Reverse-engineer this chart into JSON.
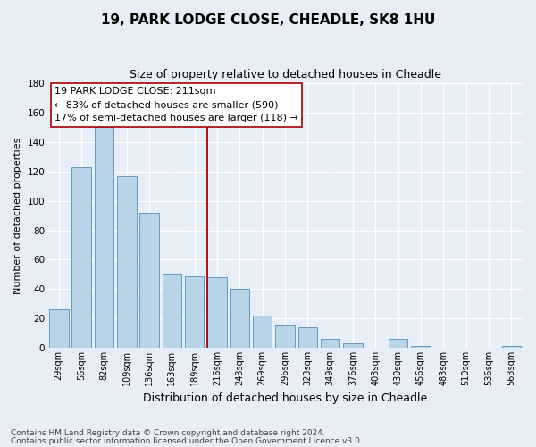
{
  "title": "19, PARK LODGE CLOSE, CHEADLE, SK8 1HU",
  "subtitle": "Size of property relative to detached houses in Cheadle",
  "xlabel": "Distribution of detached houses by size in Cheadle",
  "ylabel": "Number of detached properties",
  "footnote1": "Contains HM Land Registry data © Crown copyright and database right 2024.",
  "footnote2": "Contains public sector information licensed under the Open Government Licence v3.0.",
  "bar_labels": [
    "29sqm",
    "56sqm",
    "82sqm",
    "109sqm",
    "136sqm",
    "163sqm",
    "189sqm",
    "216sqm",
    "243sqm",
    "269sqm",
    "296sqm",
    "323sqm",
    "349sqm",
    "376sqm",
    "403sqm",
    "430sqm",
    "456sqm",
    "483sqm",
    "510sqm",
    "536sqm",
    "563sqm"
  ],
  "bar_values": [
    26,
    123,
    150,
    117,
    92,
    50,
    49,
    48,
    40,
    22,
    15,
    14,
    6,
    3,
    0,
    6,
    1,
    0,
    0,
    0,
    1
  ],
  "bar_color": "#b8d4e8",
  "bar_edge_color": "#6699bb",
  "vline_color": "#aa0000",
  "annotation_title": "19 PARK LODGE CLOSE: 211sqm",
  "annotation_line1": "← 83% of detached houses are smaller (590)",
  "annotation_line2": "17% of semi-detached houses are larger (118) →",
  "annotation_box_color": "#ffffff",
  "annotation_box_edge": "#aa0000",
  "ylim": [
    0,
    180
  ],
  "yticks": [
    0,
    20,
    40,
    60,
    80,
    100,
    120,
    140,
    160,
    180
  ],
  "bg_color": "#e8eef8",
  "grid_color": "#ffffff",
  "title_fontsize": 11,
  "subtitle_fontsize": 9,
  "ylabel_fontsize": 8,
  "xlabel_fontsize": 9,
  "tick_fontsize": 7,
  "footnote_fontsize": 6.5,
  "footnote_color": "#444444"
}
